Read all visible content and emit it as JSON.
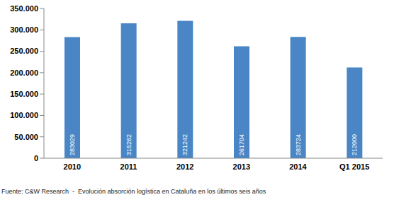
{
  "chart_data": {
    "type": "bar",
    "categories": [
      "2010",
      "2011",
      "2012",
      "2013",
      "2014",
      "Q1 2015"
    ],
    "values": [
      283029,
      315262,
      321242,
      261704,
      283724,
      212000
    ],
    "color": "#4a86c5",
    "ylim": [
      0,
      350000
    ],
    "yticks": [
      0,
      {
        "value": 50000,
        "label": "50.000"
      },
      {
        "value": 100000,
        "label": "100.000"
      },
      {
        "value": 150000,
        "label": "150.000"
      },
      {
        "value": 200000,
        "label": "200.000"
      },
      {
        "value": 250000,
        "label": "250.000"
      },
      {
        "value": 300000,
        "label": "300.000"
      },
      {
        "value": 350000,
        "label": "350.000"
      }
    ],
    "grid": false,
    "data_labels": true,
    "source": "Fuente: C&W Research  -  Evolución absorción logística en Cataluña en los últimos seis años"
  }
}
